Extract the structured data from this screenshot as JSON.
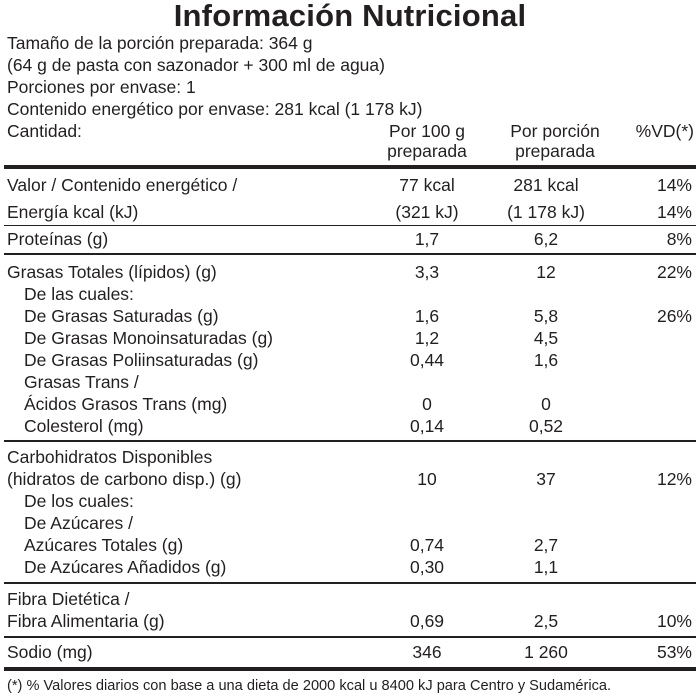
{
  "title": "Información Nutricional",
  "serving": {
    "size": "Tamaño de la porción preparada: 364 g",
    "detail": "(64 g de pasta con sazonador + 300 ml de agua)",
    "portions": "Porciones por envase: 1",
    "energy": "Contenido energético por envase: 281 kcal (1 178 kJ)"
  },
  "header": {
    "amount": "Cantidad:",
    "per100_line1": "Por 100 g",
    "per100_line2": "preparada",
    "perportion_line1": "Por porción",
    "perportion_line2": "preparada",
    "vd": "%VD(*)"
  },
  "rows": [
    {
      "label": "Valor / Contenido energético /",
      "per100": "77 kcal",
      "perportion": "281 kcal",
      "vd": "14%"
    },
    {
      "label": "Energía kcal (kJ)",
      "per100": "(321 kJ)",
      "perportion": "(1 178 kJ)",
      "vd": "14%"
    },
    {
      "label": "Proteínas (g)",
      "per100": "1,7",
      "perportion": "6,2",
      "vd": "8%"
    },
    {
      "label": "Grasas Totales (lípidos) (g)",
      "per100": "3,3",
      "perportion": "12",
      "vd": "22%"
    },
    {
      "label": "De las cuales:",
      "per100": "",
      "perportion": "",
      "vd": ""
    },
    {
      "label": "De Grasas Saturadas (g)",
      "per100": "1,6",
      "perportion": "5,8",
      "vd": "26%"
    },
    {
      "label": "De Grasas Monoinsaturadas (g)",
      "per100": "1,2",
      "perportion": "4,5",
      "vd": ""
    },
    {
      "label": "De Grasas Poliinsaturadas (g)",
      "per100": "0,44",
      "perportion": "1,6",
      "vd": ""
    },
    {
      "label": "Grasas Trans /",
      "per100": "",
      "perportion": "",
      "vd": ""
    },
    {
      "label": "Ácidos Grasos Trans (mg)",
      "per100": "0",
      "perportion": "0",
      "vd": ""
    },
    {
      "label": "Colesterol (mg)",
      "per100": "0,14",
      "perportion": "0,52",
      "vd": ""
    },
    {
      "label": "Carbohidratos Disponibles",
      "per100": "",
      "perportion": "",
      "vd": ""
    },
    {
      "label": "(hidratos de carbono disp.) (g)",
      "per100": "10",
      "perportion": "37",
      "vd": "12%"
    },
    {
      "label": "De los cuales:",
      "per100": "",
      "perportion": "",
      "vd": ""
    },
    {
      "label": "De Azúcares /",
      "per100": "",
      "perportion": "",
      "vd": ""
    },
    {
      "label": "Azúcares Totales (g)",
      "per100": "0,74",
      "perportion": "2,7",
      "vd": ""
    },
    {
      "label": "De Azúcares Añadidos (g)",
      "per100": "0,30",
      "perportion": "1,1",
      "vd": ""
    },
    {
      "label": "Fibra Dietética /",
      "per100": "",
      "perportion": "",
      "vd": ""
    },
    {
      "label": "Fibra Alimentaria (g)",
      "per100": "0,69",
      "perportion": "2,5",
      "vd": "10%"
    },
    {
      "label": "Sodio (mg)",
      "per100": "346",
      "perportion": "1 260",
      "vd": "53%"
    }
  ],
  "footnote": "(*) % Valores diarios con base a una dieta de 2000 kcal u 8400 kJ para Centro y Sudamérica."
}
